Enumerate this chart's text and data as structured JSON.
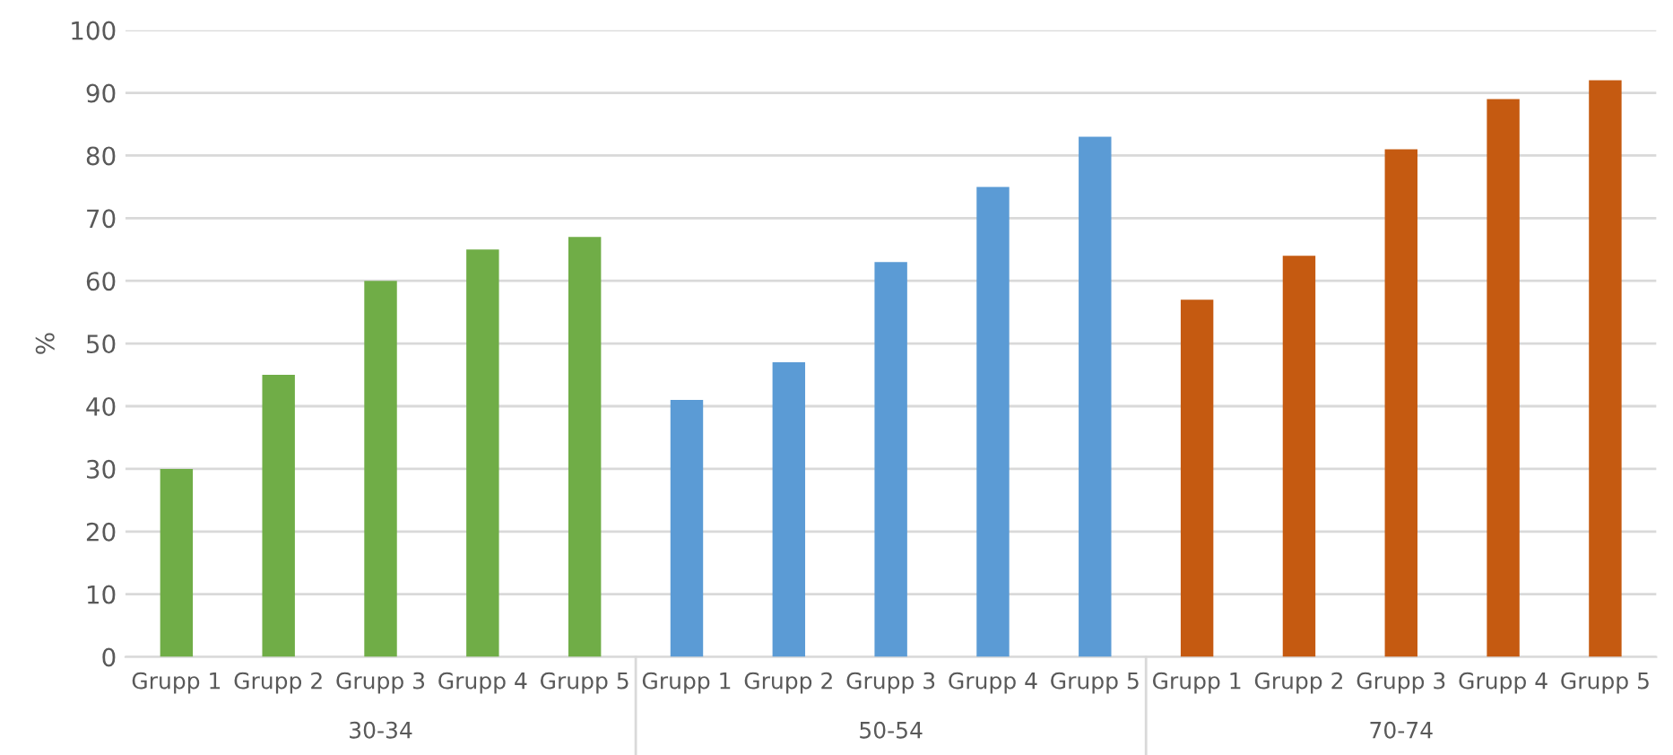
{
  "chart_data": {
    "type": "bar",
    "ylabel": "%",
    "categories": [
      "Grupp 1",
      "Grupp 2",
      "Grupp 3",
      "Grupp 4",
      "Grupp 5",
      "Grupp 1",
      "Grupp 2",
      "Grupp 3",
      "Grupp 4",
      "Grupp 5",
      "Grupp 1",
      "Grupp 2",
      "Grupp 3",
      "Grupp 4",
      "Grupp 5"
    ],
    "values": [
      30,
      45,
      60,
      65,
      67,
      41,
      47,
      63,
      75,
      83,
      57,
      64,
      81,
      89,
      92
    ],
    "colors": [
      "#70ad47",
      "#70ad47",
      "#70ad47",
      "#70ad47",
      "#70ad47",
      "#5b9bd5",
      "#5b9bd5",
      "#5b9bd5",
      "#5b9bd5",
      "#5b9bd5",
      "#c55a11",
      "#c55a11",
      "#c55a11",
      "#c55a11",
      "#c55a11"
    ],
    "annotations": [
      "30-34",
      "50-54",
      "70-74"
    ],
    "ylim": [
      0,
      100
    ],
    "yticks": [
      0,
      10,
      20,
      30,
      40,
      50,
      60,
      70,
      80,
      90,
      100
    ],
    "grid": "y"
  }
}
